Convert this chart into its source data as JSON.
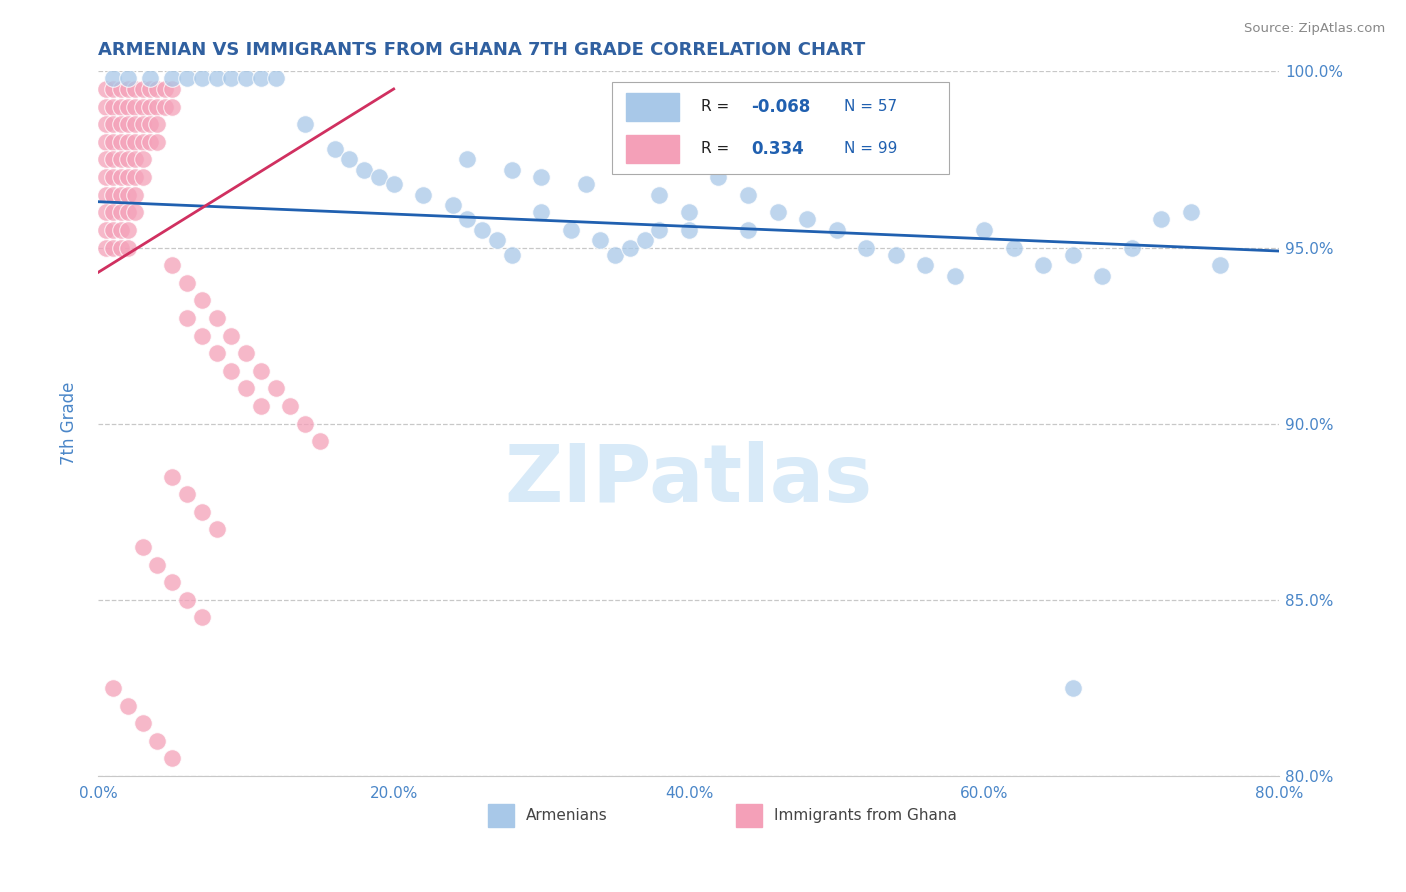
{
  "title": "ARMENIAN VS IMMIGRANTS FROM GHANA 7TH GRADE CORRELATION CHART",
  "source": "Source: ZipAtlas.com",
  "ylabel": "7th Grade",
  "xlim": [
    0.0,
    80.0
  ],
  "ylim": [
    80.0,
    100.0
  ],
  "x_ticks": [
    0,
    20,
    40,
    60,
    80
  ],
  "x_tick_labels": [
    "0.0%",
    "20.0%",
    "40.0%",
    "60.0%",
    "80.0%"
  ],
  "y_ticks": [
    80.0,
    85.0,
    90.0,
    95.0,
    100.0
  ],
  "y_tick_labels": [
    "80.0%",
    "85.0%",
    "90.0%",
    "95.0%",
    "100.0%"
  ],
  "legend_blue_R": -0.068,
  "legend_blue_N": 57,
  "legend_pink_R": 0.334,
  "legend_pink_N": 99,
  "blue_dot_color": "#a8c8e8",
  "pink_dot_color": "#f4a0b8",
  "blue_line_color": "#2060b0",
  "pink_line_color": "#d03060",
  "axis_color": "#4a86c8",
  "grid_color": "#c8c8c8",
  "title_color": "#3060a0",
  "source_color": "#888888",
  "watermark_color": "#d8eaf8",
  "blue_line_x": [
    0.0,
    80.0
  ],
  "blue_line_y": [
    96.3,
    94.9
  ],
  "pink_line_x": [
    0.0,
    20.0
  ],
  "pink_line_y": [
    94.3,
    99.5
  ],
  "blue_x": [
    1.0,
    2.0,
    3.5,
    5.0,
    6.0,
    7.0,
    8.0,
    9.0,
    10.0,
    11.0,
    12.0,
    14.0,
    16.0,
    17.0,
    18.0,
    19.0,
    20.0,
    22.0,
    24.0,
    25.0,
    26.0,
    27.0,
    28.0,
    30.0,
    32.0,
    34.0,
    35.0,
    36.0,
    37.0,
    38.0,
    40.0,
    42.0,
    44.0,
    46.0,
    48.0,
    50.0,
    52.0,
    54.0,
    56.0,
    58.0,
    60.0,
    62.0,
    64.0,
    66.0,
    68.0,
    70.0,
    72.0,
    74.0,
    76.0,
    25.0,
    28.0,
    30.0,
    33.0,
    38.0,
    40.0,
    44.0,
    66.0
  ],
  "blue_y": [
    99.8,
    99.8,
    99.8,
    99.8,
    99.8,
    99.8,
    99.8,
    99.8,
    99.8,
    99.8,
    99.8,
    98.5,
    97.8,
    97.5,
    97.2,
    97.0,
    96.8,
    96.5,
    96.2,
    95.8,
    95.5,
    95.2,
    94.8,
    96.0,
    95.5,
    95.2,
    94.8,
    95.0,
    95.2,
    95.5,
    95.5,
    97.0,
    96.5,
    96.0,
    95.8,
    95.5,
    95.0,
    94.8,
    94.5,
    94.2,
    95.5,
    95.0,
    94.5,
    94.8,
    94.2,
    95.0,
    95.8,
    96.0,
    94.5,
    97.5,
    97.2,
    97.0,
    96.8,
    96.5,
    96.0,
    95.5,
    82.5
  ],
  "pink_x": [
    0.5,
    1.0,
    1.5,
    2.0,
    2.5,
    3.0,
    3.5,
    4.0,
    4.5,
    5.0,
    0.5,
    1.0,
    1.5,
    2.0,
    2.5,
    3.0,
    3.5,
    4.0,
    4.5,
    5.0,
    0.5,
    1.0,
    1.5,
    2.0,
    2.5,
    3.0,
    3.5,
    4.0,
    0.5,
    1.0,
    1.5,
    2.0,
    2.5,
    3.0,
    3.5,
    4.0,
    0.5,
    1.0,
    1.5,
    2.0,
    2.5,
    3.0,
    0.5,
    1.0,
    1.5,
    2.0,
    2.5,
    3.0,
    0.5,
    1.0,
    1.5,
    2.0,
    2.5,
    0.5,
    1.0,
    1.5,
    2.0,
    2.5,
    0.5,
    1.0,
    1.5,
    2.0,
    0.5,
    1.0,
    1.5,
    2.0,
    5.0,
    6.0,
    7.0,
    8.0,
    9.0,
    10.0,
    11.0,
    12.0,
    13.0,
    14.0,
    15.0,
    5.0,
    6.0,
    7.0,
    8.0,
    6.0,
    7.0,
    8.0,
    9.0,
    10.0,
    11.0,
    3.0,
    4.0,
    5.0,
    6.0,
    7.0,
    1.0,
    2.0,
    3.0,
    4.0,
    5.0
  ],
  "pink_y": [
    99.5,
    99.5,
    99.5,
    99.5,
    99.5,
    99.5,
    99.5,
    99.5,
    99.5,
    99.5,
    99.0,
    99.0,
    99.0,
    99.0,
    99.0,
    99.0,
    99.0,
    99.0,
    99.0,
    99.0,
    98.5,
    98.5,
    98.5,
    98.5,
    98.5,
    98.5,
    98.5,
    98.5,
    98.0,
    98.0,
    98.0,
    98.0,
    98.0,
    98.0,
    98.0,
    98.0,
    97.5,
    97.5,
    97.5,
    97.5,
    97.5,
    97.5,
    97.0,
    97.0,
    97.0,
    97.0,
    97.0,
    97.0,
    96.5,
    96.5,
    96.5,
    96.5,
    96.5,
    96.0,
    96.0,
    96.0,
    96.0,
    96.0,
    95.5,
    95.5,
    95.5,
    95.5,
    95.0,
    95.0,
    95.0,
    95.0,
    94.5,
    94.0,
    93.5,
    93.0,
    92.5,
    92.0,
    91.5,
    91.0,
    90.5,
    90.0,
    89.5,
    88.5,
    88.0,
    87.5,
    87.0,
    93.0,
    92.5,
    92.0,
    91.5,
    91.0,
    90.5,
    86.5,
    86.0,
    85.5,
    85.0,
    84.5,
    82.5,
    82.0,
    81.5,
    81.0,
    80.5
  ]
}
